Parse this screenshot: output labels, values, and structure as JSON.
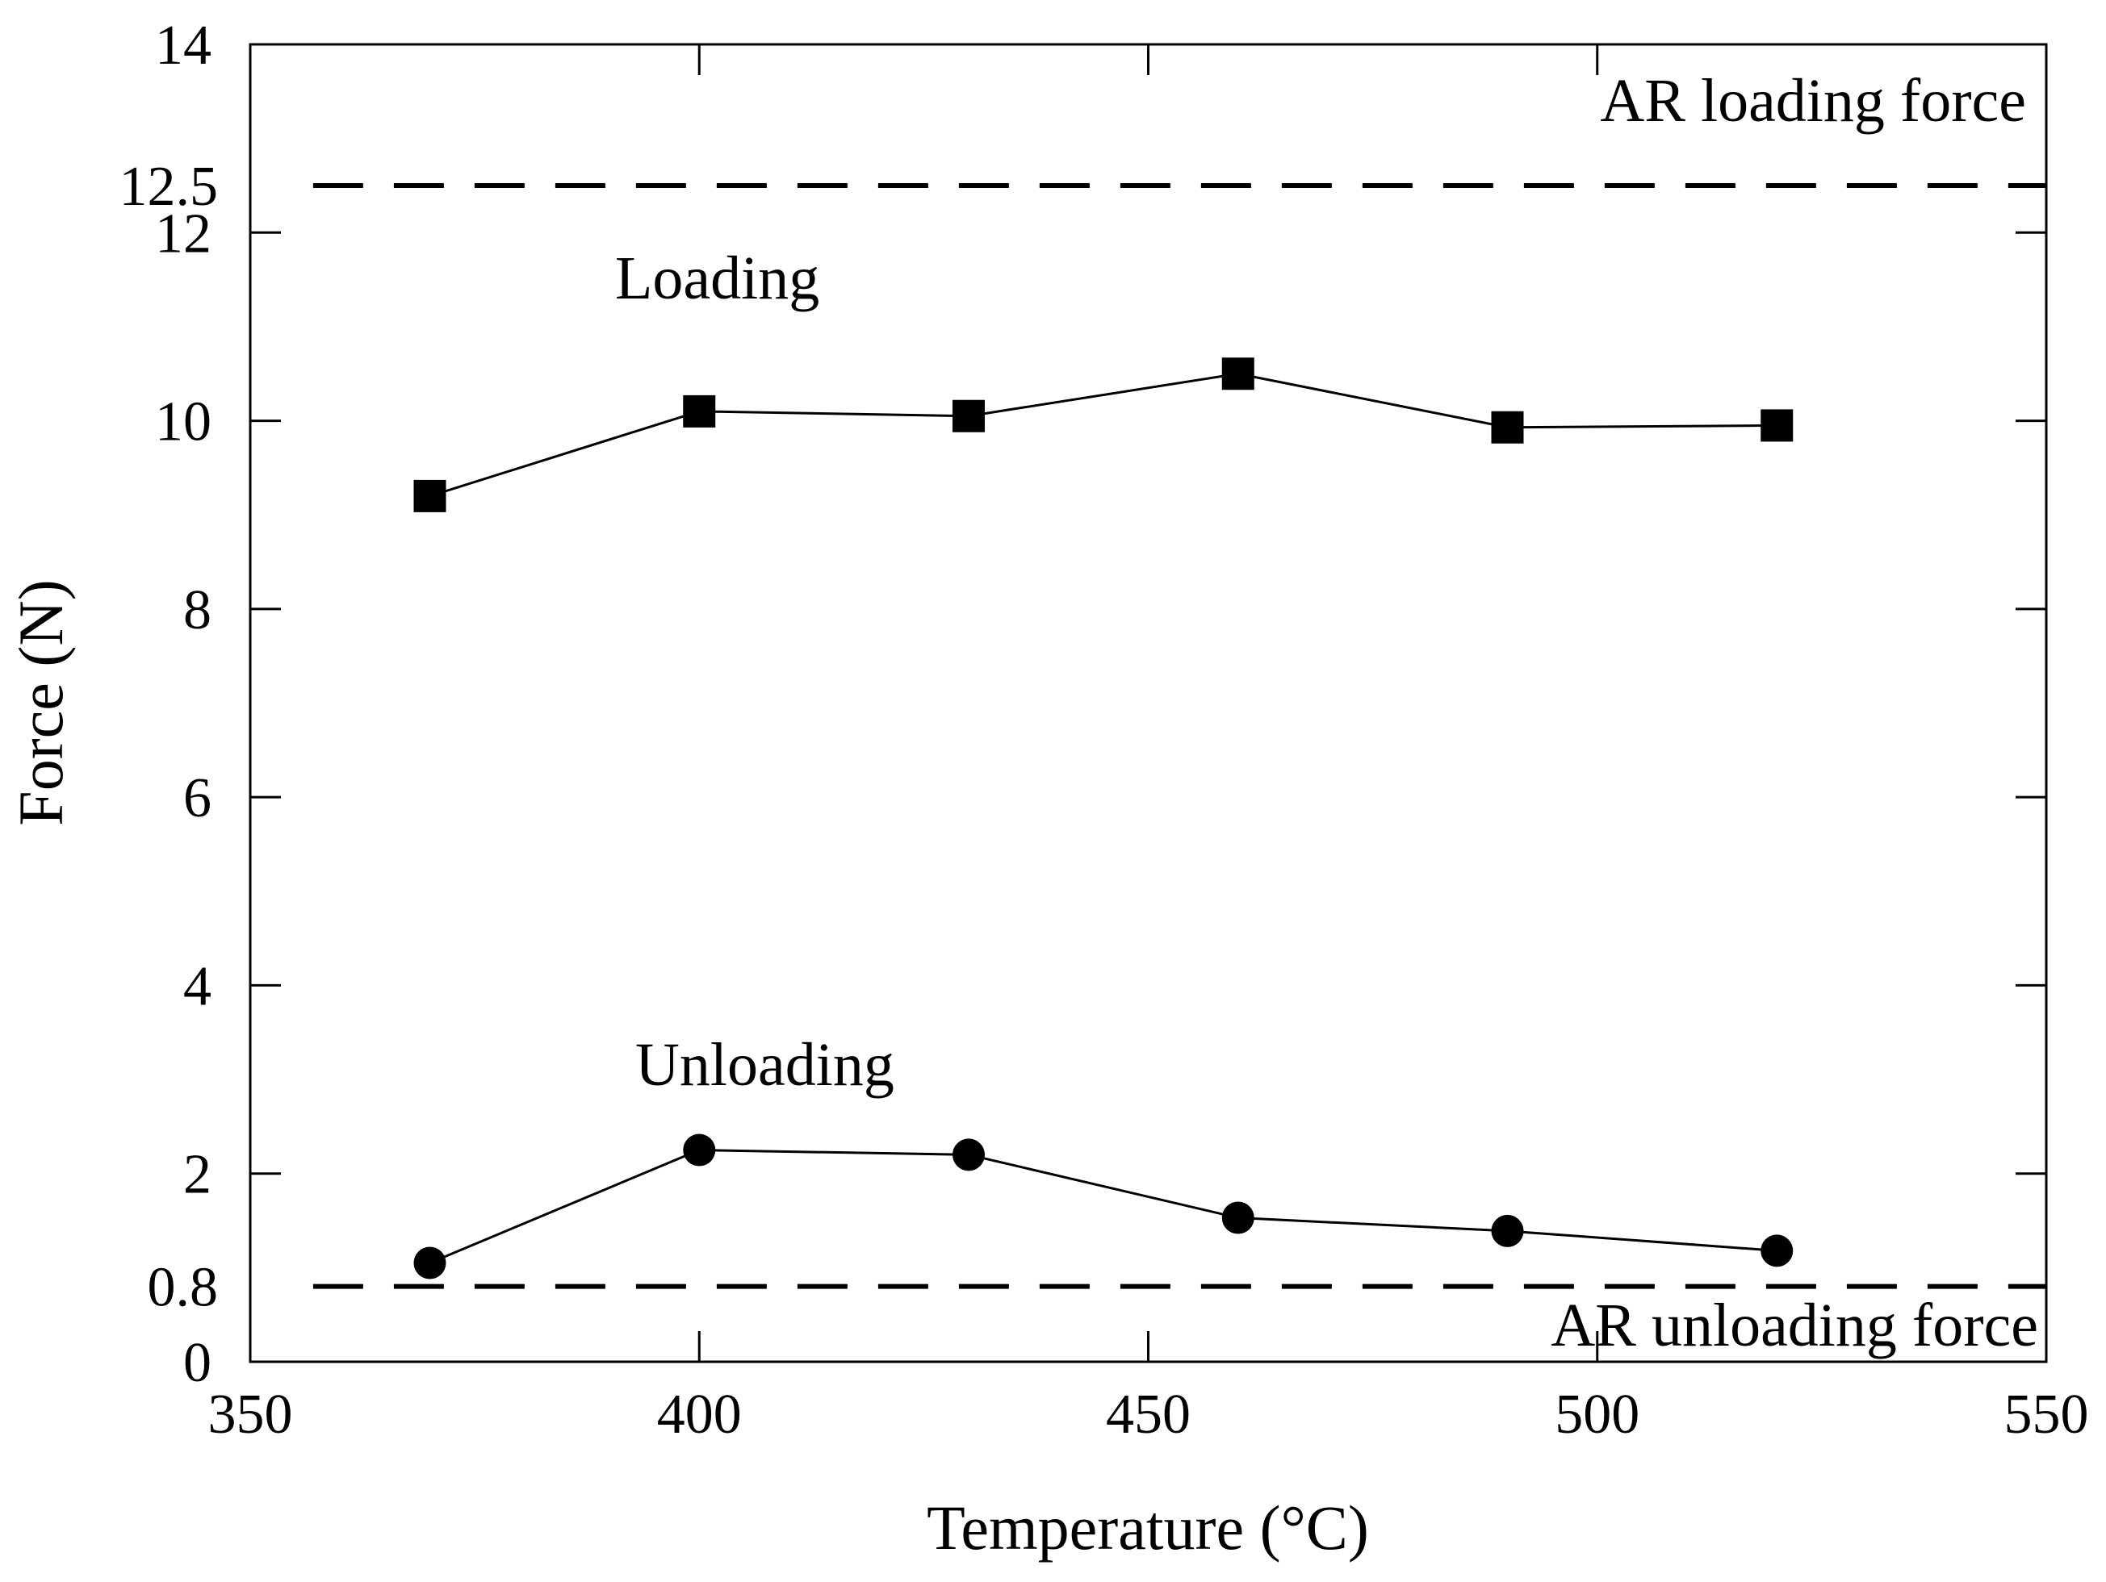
{
  "chart_data": {
    "type": "line",
    "title": "",
    "xlabel": "Temperature (°C)",
    "ylabel": "Force (N)",
    "xlim": [
      350,
      550
    ],
    "ylim": [
      0,
      14
    ],
    "xticks": [
      "350",
      "400",
      "450",
      "500",
      "550"
    ],
    "yticks": [
      "0",
      "2",
      "4",
      "6",
      "8",
      "10",
      "12",
      "14"
    ],
    "grid": false,
    "series": [
      {
        "name": "Loading",
        "marker": "square",
        "x": [
          370,
          400,
          430,
          460,
          490,
          520
        ],
        "values": [
          9.2,
          10.1,
          10.05,
          10.5,
          9.93,
          9.95
        ]
      },
      {
        "name": "Unloading",
        "marker": "circle",
        "x": [
          370,
          400,
          430,
          460,
          490,
          520
        ],
        "values": [
          1.05,
          2.25,
          2.2,
          1.53,
          1.39,
          1.18
        ]
      }
    ],
    "reference_lines": [
      {
        "value": 12.5,
        "tick_label": "12.5",
        "label": "AR loading force",
        "style": "dashed"
      },
      {
        "value": 0.8,
        "tick_label": "0.8",
        "label": "AR unloading force",
        "style": "dashed"
      }
    ],
    "colors": {
      "line": "#000000",
      "background": "#ffffff"
    }
  }
}
